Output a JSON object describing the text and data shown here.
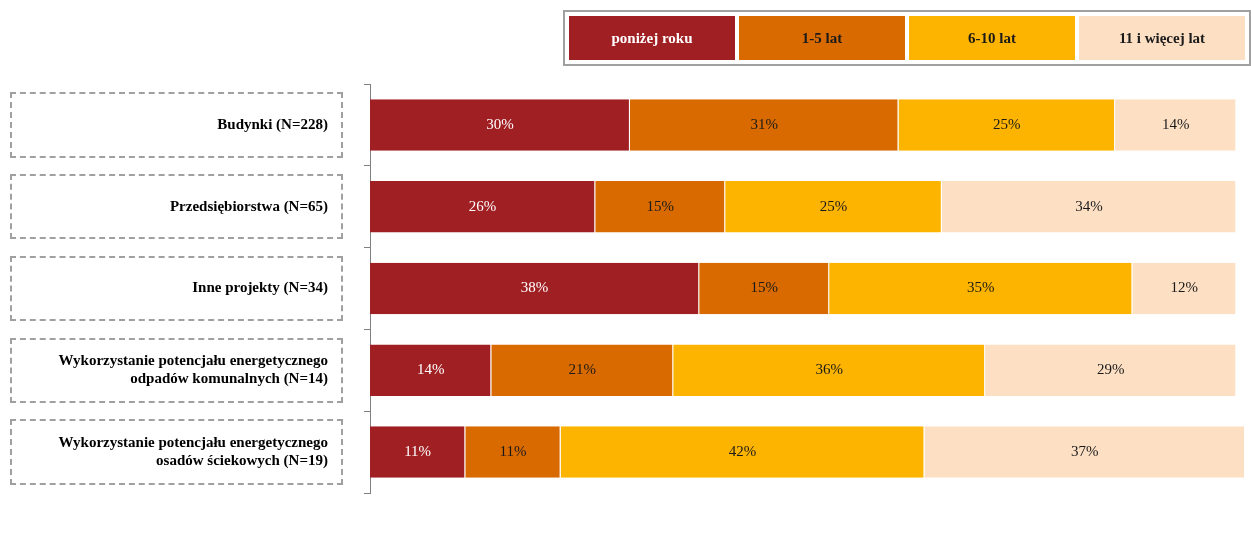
{
  "chart_data": {
    "type": "bar",
    "orientation": "horizontal",
    "stacked": true,
    "legend": "top right",
    "xlim": [
      0,
      101
    ],
    "categories": [
      "Budynki (N=228)",
      "Przedsiębiorstwa (N=65)",
      "Inne projekty (N=34)",
      "Wykorzystanie potencjału energetycznego odpadów komunalnych (N=14)",
      "Wykorzystanie potencjału energetycznego osadów ściekowych (N=19)"
    ],
    "series": [
      {
        "name": "poniżej roku",
        "color": "#a01f23",
        "values": [
          30,
          26,
          38,
          14,
          11
        ],
        "value_labels": [
          "30%",
          "26%",
          "38%",
          "14%",
          "11%"
        ]
      },
      {
        "name": "1-5 lat",
        "color": "#d96a00",
        "values": [
          31,
          15,
          15,
          21,
          11
        ],
        "value_labels": [
          "31%",
          "15%",
          "15%",
          "21%",
          "11%"
        ]
      },
      {
        "name": "6-10 lat",
        "color": "#fdb400",
        "values": [
          25,
          25,
          35,
          36,
          42
        ],
        "value_labels": [
          "25%",
          "25%",
          "35%",
          "36%",
          "42%"
        ]
      },
      {
        "name": "11 i więcej lat",
        "color": "#fde0c4",
        "values": [
          14,
          34,
          12,
          29,
          37
        ],
        "value_labels": [
          "14%",
          "34%",
          "12%",
          "29%",
          "37%"
        ]
      }
    ]
  }
}
